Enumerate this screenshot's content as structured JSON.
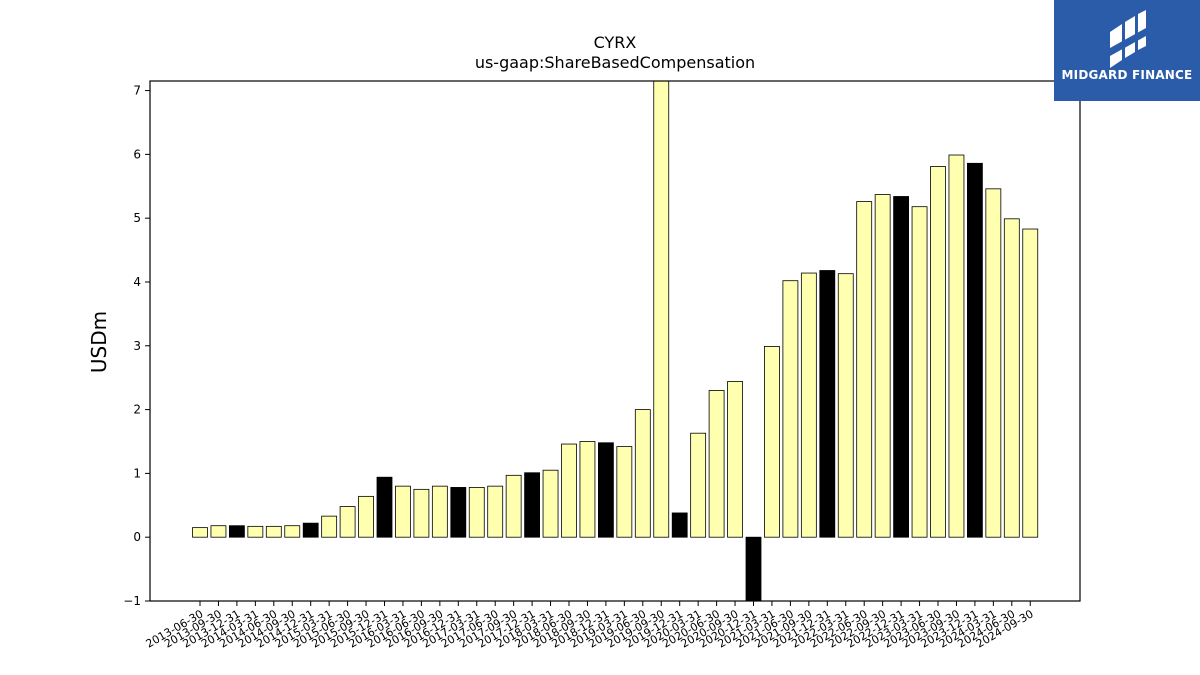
{
  "chart_data": {
    "type": "bar",
    "title": "CYRX",
    "subtitle": "us-gaap:ShareBasedCompensation",
    "xlabel": "",
    "ylabel": "USDm",
    "ylim": [
      -1,
      7.15
    ],
    "yticks": [
      -1,
      0,
      1,
      2,
      3,
      4,
      5,
      6,
      7
    ],
    "grid": false,
    "categories": [
      "2013-06-30",
      "2013-09-30",
      "2013-12-31",
      "2014-03-31",
      "2014-06-30",
      "2014-09-30",
      "2014-12-31",
      "2015-03-31",
      "2015-06-30",
      "2015-09-30",
      "2015-12-31",
      "2016-03-31",
      "2016-06-30",
      "2016-09-30",
      "2016-12-31",
      "2017-03-31",
      "2017-06-30",
      "2017-09-30",
      "2017-12-31",
      "2018-03-31",
      "2018-06-30",
      "2018-09-30",
      "2018-12-31",
      "2019-03-31",
      "2019-06-30",
      "2019-09-30",
      "2019-12-31",
      "2020-03-31",
      "2020-06-30",
      "2020-09-30",
      "2020-12-31",
      "2021-03-31",
      "2021-06-30",
      "2021-09-30",
      "2021-12-31",
      "2022-03-31",
      "2022-06-30",
      "2022-09-30",
      "2022-12-31",
      "2023-03-31",
      "2023-06-30",
      "2023-09-30",
      "2023-12-31",
      "2024-03-31",
      "2024-06-30",
      "2024-09-30"
    ],
    "values": [
      0.15,
      0.18,
      0.18,
      0.17,
      0.17,
      0.18,
      0.22,
      0.33,
      0.48,
      0.64,
      0.94,
      0.8,
      0.75,
      0.8,
      0.78,
      0.78,
      0.8,
      0.97,
      1.01,
      1.05,
      1.46,
      1.5,
      1.48,
      1.42,
      2.0,
      7.15,
      0.38,
      1.63,
      2.3,
      2.44,
      -1.0,
      2.99,
      4.02,
      4.14,
      4.18,
      4.13,
      5.26,
      5.37,
      5.34,
      5.18,
      5.81,
      5.99,
      5.86,
      5.46,
      4.99,
      4.83
    ],
    "q4_flags": [
      false,
      false,
      true,
      false,
      false,
      false,
      true,
      false,
      false,
      false,
      true,
      false,
      false,
      false,
      true,
      false,
      false,
      false,
      true,
      false,
      false,
      false,
      true,
      false,
      false,
      false,
      true,
      false,
      false,
      false,
      true,
      false,
      false,
      false,
      true,
      false,
      false,
      false,
      true,
      false,
      false,
      false,
      true,
      false,
      false,
      false
    ],
    "colors": {
      "bar": "#ffffb0",
      "bar_q4": "#000000",
      "edge": "#000000"
    }
  },
  "logo": {
    "text": "MIDGARD FINANCE",
    "background": "#2a5caa"
  }
}
